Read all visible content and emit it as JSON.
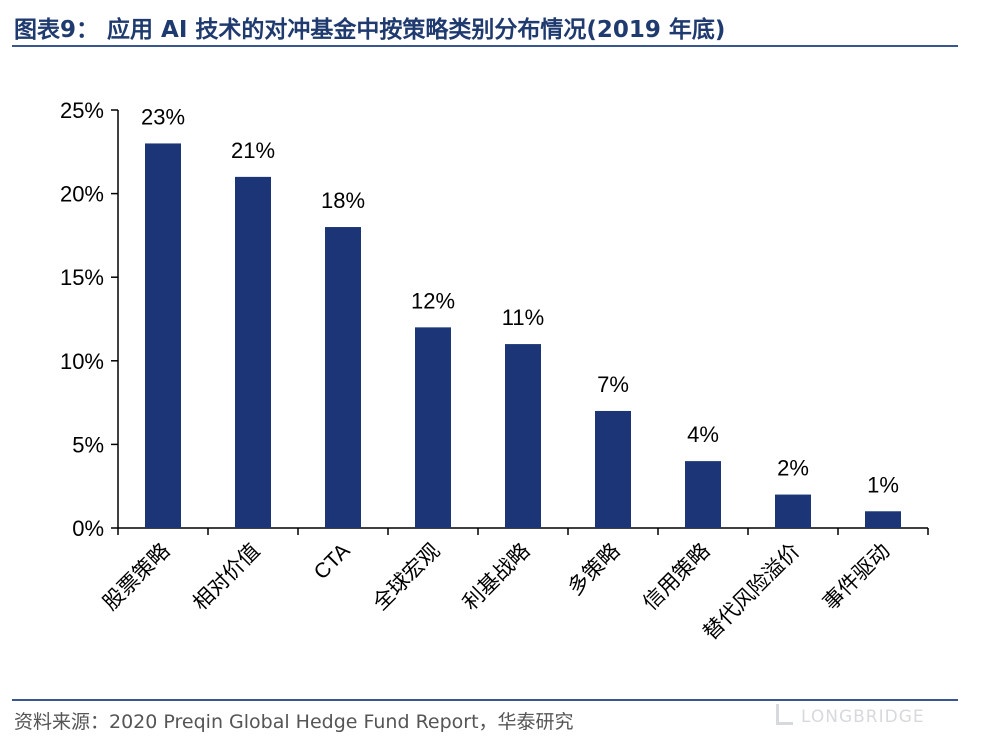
{
  "title": "图表9：  应用 AI 技术的对冲基金中按策略类别分布情况(2019 年底)",
  "source": "资料来源：2020 Preqin Global Hedge Fund Report，华泰研究",
  "watermark": "LONGBRIDGE",
  "colors": {
    "bar": "#1b3576",
    "title": "#1f3a6e",
    "rule": "#3a5691"
  },
  "chart_data": {
    "type": "bar",
    "title": "",
    "xlabel": "",
    "ylabel": "",
    "categories": [
      "股票策略",
      "相对价值",
      "CTA",
      "全球宏观",
      "利基战略",
      "多策略",
      "信用策略",
      "替代风险溢价",
      "事件驱动"
    ],
    "values": [
      23,
      21,
      18,
      12,
      11,
      7,
      4,
      2,
      1
    ],
    "data_labels": [
      "23%",
      "21%",
      "18%",
      "12%",
      "11%",
      "7%",
      "4%",
      "2%",
      "1%"
    ],
    "ylim": [
      0,
      25
    ],
    "yticks": [
      0,
      5,
      10,
      15,
      20,
      25
    ],
    "ytick_labels": [
      "0%",
      "5%",
      "10%",
      "15%",
      "20%",
      "25%"
    ],
    "grid": false,
    "legend": "none"
  }
}
